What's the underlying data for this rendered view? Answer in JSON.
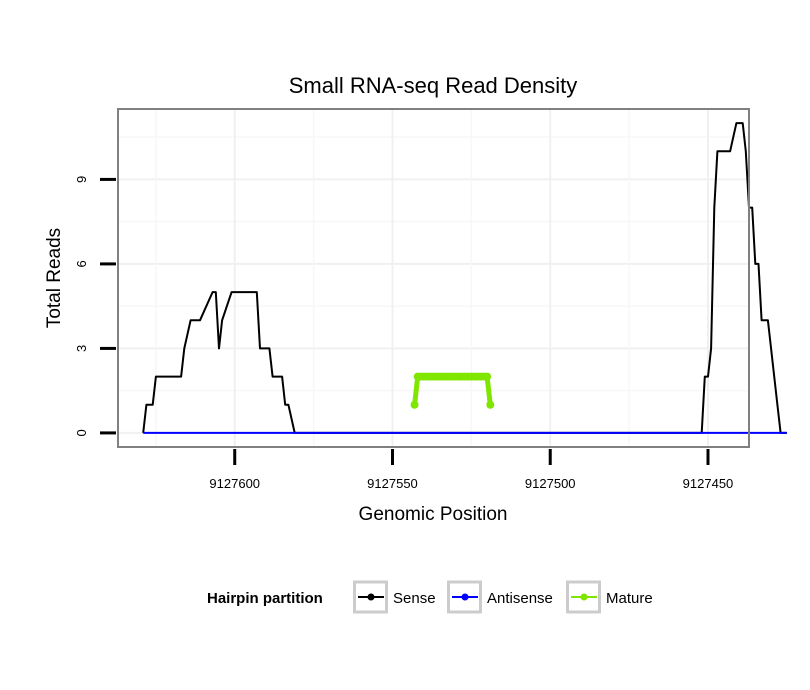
{
  "chart_data": {
    "type": "line",
    "title": "Small RNA-seq Read Density",
    "xlabel": "Genomic Position",
    "ylabel": "Total Reads",
    "x_reversed": true,
    "xlim": [
      9127637,
      9127437
    ],
    "ylim": [
      -0.5,
      11.5
    ],
    "x_ticks": [
      9127600,
      9127550,
      9127500,
      9127450
    ],
    "x_tick_labels": [
      "9127600",
      "9127550",
      "9127500",
      "9127450"
    ],
    "y_ticks": [
      0,
      3,
      6,
      9
    ],
    "y_tick_labels": [
      "0",
      "3",
      "6",
      "9"
    ],
    "grid": true,
    "legend": {
      "title": "Hairpin partition",
      "position": "bottom",
      "entries": [
        {
          "label": "Sense",
          "color": "#000000"
        },
        {
          "label": "Antisense",
          "color": "#0000ff"
        },
        {
          "label": "Mature",
          "color": "#7fe600"
        }
      ]
    },
    "series": [
      {
        "name": "Sense",
        "color": "#000000",
        "x": [
          9127629,
          9127628,
          9127626,
          9127625,
          9127617,
          9127616,
          9127614,
          9127611,
          9127607,
          9127606,
          9127605,
          9127604,
          9127601,
          9127593,
          9127592,
          9127589,
          9127588,
          9127585,
          9127584,
          9127583,
          9127581,
          9127580,
          9127579,
          9127452,
          9127451,
          9127450,
          9127449,
          9127448,
          9127447,
          9127444,
          9127443,
          9127441,
          9127440,
          9127439,
          9127438,
          9127437,
          9127436,
          9127435,
          9127434,
          9127433,
          9127431,
          9127428,
          9127427,
          9127426,
          9127425
        ],
        "y": [
          0,
          1,
          1,
          2,
          2,
          3,
          4,
          4,
          5,
          5,
          3,
          4,
          5,
          5,
          3,
          3,
          2,
          2,
          1,
          1,
          0,
          0,
          0,
          0,
          2,
          2,
          3,
          8,
          10,
          10,
          10,
          11,
          11,
          11,
          10,
          8,
          8,
          6,
          6,
          4,
          4,
          1,
          0,
          0,
          0
        ]
      },
      {
        "name": "Antisense",
        "color": "#0000ff",
        "x": [
          9127629,
          9127425
        ],
        "y": [
          0,
          0
        ]
      },
      {
        "name": "Mature",
        "color": "#7fe600",
        "x": [
          9127543,
          9127542,
          9127541,
          9127540,
          9127539,
          9127538,
          9127537,
          9127536,
          9127535,
          9127534,
          9127533,
          9127532,
          9127531,
          9127530,
          9127529,
          9127528,
          9127527,
          9127526,
          9127525,
          9127524,
          9127523,
          9127522,
          9127521,
          9127520,
          9127519
        ],
        "y": [
          1,
          2,
          2,
          2,
          2,
          2,
          2,
          2,
          2,
          2,
          2,
          2,
          2,
          2,
          2,
          2,
          2,
          2,
          2,
          2,
          2,
          2,
          2,
          2,
          1
        ]
      }
    ]
  }
}
